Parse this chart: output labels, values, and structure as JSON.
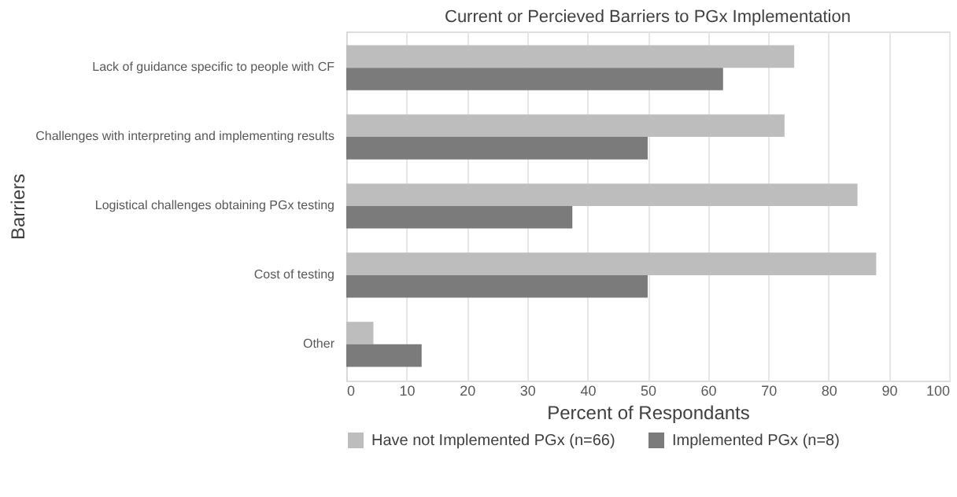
{
  "chart_data": {
    "type": "bar",
    "orientation": "horizontal",
    "title": "Current or Percieved Barriers to PGx Implementation",
    "xlabel": "Percent of Respondants",
    "ylabel": "Barriers",
    "categories": [
      "Lack of guidance specific to people with CF",
      "Challenges with interpreting and implementing results",
      "Logistical challenges obtaining PGx testing",
      "Cost of testing",
      "Other"
    ],
    "series": [
      {
        "name": "Have not Implemented PGx (n=66)",
        "color": "#bdbdbd",
        "values": [
          74.3,
          72.7,
          84.8,
          87.9,
          4.5
        ]
      },
      {
        "name": "Implemented PGx (n=8)",
        "color": "#7b7b7b",
        "values": [
          62.5,
          50,
          37.5,
          50,
          12.5
        ]
      }
    ],
    "xlim": [
      0,
      100
    ],
    "xticks": [
      0,
      10,
      20,
      30,
      40,
      50,
      60,
      70,
      80,
      90,
      100
    ],
    "grid": "x",
    "legend": "bottom"
  }
}
